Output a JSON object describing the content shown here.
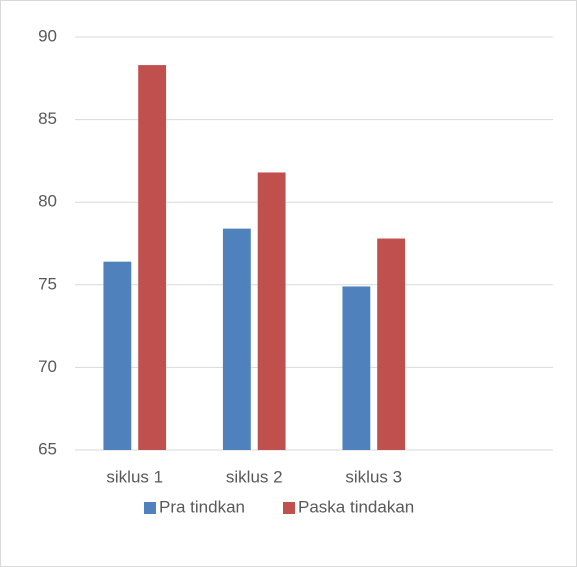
{
  "chart_data": {
    "type": "bar",
    "categories": [
      "siklus 1",
      "siklus 2",
      "siklus 3",
      null
    ],
    "series": [
      {
        "name": "Pra tindkan",
        "color": "#4f81bd",
        "values": [
          76.4,
          78.4,
          74.9,
          null
        ]
      },
      {
        "name": "Paska tindakan",
        "color": "#c0504d",
        "values": [
          88.3,
          81.8,
          77.8,
          null
        ]
      }
    ],
    "ylim": [
      65,
      90
    ],
    "yticks": [
      65,
      70,
      75,
      80,
      85,
      90
    ],
    "grid": true,
    "legend": "bottom"
  }
}
